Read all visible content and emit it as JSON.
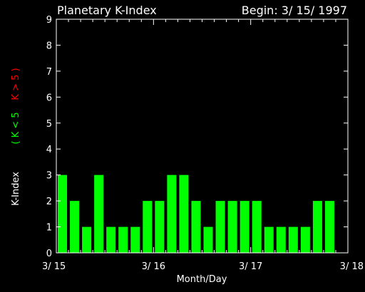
{
  "chart_data": {
    "type": "bar",
    "title": "Planetary K-Index",
    "subtitle": "Begin: 3/ 15/ 1997",
    "xlabel": "Month/Day",
    "ylabel": "K-Index",
    "ylabel_legend": [
      {
        "text": "( K < 5",
        "color": "#00ff00"
      },
      {
        "text": "K > 5 )",
        "color": "#ff0000"
      }
    ],
    "ylim": [
      0,
      9
    ],
    "yticks": [
      "0",
      "1",
      "2",
      "3",
      "4",
      "5",
      "6",
      "7",
      "8",
      "9"
    ],
    "xlim_days": [
      0,
      3
    ],
    "xticks": [
      {
        "label": "3/ 15",
        "day": 0
      },
      {
        "label": "3/ 16",
        "day": 1
      },
      {
        "label": "3/ 17",
        "day": 2
      },
      {
        "label": "3/ 18",
        "day": 3
      }
    ],
    "interval_hours": 3,
    "values": [
      3,
      2,
      1,
      3,
      1,
      1,
      1,
      2,
      2,
      3,
      3,
      2,
      1,
      2,
      2,
      2,
      2,
      1,
      1,
      1,
      1,
      2,
      2
    ],
    "bar_color": "#00ff00",
    "high_color": "#ff0000",
    "threshold": 5,
    "axis_color": "#ffffff",
    "text_color": "#ffffff",
    "background": "#000000"
  }
}
